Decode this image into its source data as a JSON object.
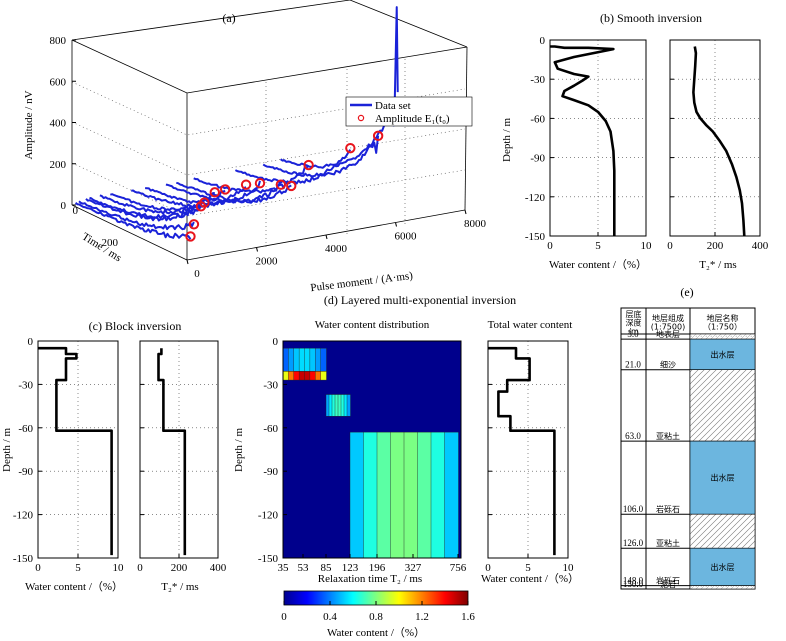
{
  "colors": {
    "data_line": "#1a22d8",
    "marker": "#e8141c",
    "aquifer": "#6cb6df",
    "profile": "#000000"
  },
  "chart_data": [
    {
      "id": "a",
      "type": "line3d",
      "title": "(a)",
      "zlabel": "Amplitude / nV",
      "xlabel": "Time / ms",
      "ylabel": "Pulse moment / (A·ms)",
      "zticks": [
        "0",
        "200",
        "400",
        "600",
        "800"
      ],
      "xticks": [
        "0",
        "200"
      ],
      "yticks": [
        "0",
        "2000",
        "4000",
        "6000",
        "8000"
      ],
      "zlim": [
        0,
        800
      ],
      "xlim": [
        0,
        300
      ],
      "ylim": [
        0,
        8000
      ],
      "legend": {
        "position": "right",
        "entries": [
          "Data set",
          "Amplitude E₁(t₀)"
        ]
      },
      "series": [
        {
          "q": 100,
          "e0": 110
        },
        {
          "q": 200,
          "e0": 165
        },
        {
          "q": 400,
          "e0": 245
        },
        {
          "q": 500,
          "e0": 260
        },
        {
          "q": 800,
          "e0": 300
        },
        {
          "q": 1100,
          "e0": 305
        },
        {
          "q": 1700,
          "e0": 310
        },
        {
          "q": 2100,
          "e0": 305
        },
        {
          "q": 2700,
          "e0": 280
        },
        {
          "q": 3000,
          "e0": 265
        },
        {
          "q": 3500,
          "e0": 350
        },
        {
          "q": 4700,
          "e0": 395
        },
        {
          "q": 5500,
          "e0": 430
        },
        {
          "q": 6000,
          "e0": 575
        }
      ]
    },
    {
      "id": "b",
      "type": "line",
      "title": "(b) Smooth inversion",
      "panels": [
        {
          "xlabel": "Water content /（%）",
          "ylabel": "Depth / m",
          "xlim": [
            0,
            10
          ],
          "ylim": [
            0,
            -150
          ],
          "xticks": [
            "0",
            "5",
            "10"
          ],
          "yticks": [
            "0",
            "-30",
            "-60",
            "-90",
            "-120",
            "-150"
          ],
          "x": [
            0,
            0.5,
            1.5,
            4,
            6.6,
            2.5,
            0.5,
            0.8,
            2.5,
            4,
            3.4,
            2.5,
            1.5,
            1.3,
            2.5,
            4,
            5,
            5.8,
            6.3,
            6.6,
            6.7,
            6.7,
            6.7
          ],
          "y": [
            -5,
            -5,
            -6,
            -6,
            -7,
            -13,
            -17,
            -22,
            -26,
            -28,
            -31,
            -35,
            -39,
            -43,
            -46,
            -50,
            -55,
            -62,
            -70,
            -85,
            -100,
            -130,
            -150
          ]
        },
        {
          "xlabel": "T₂* / ms",
          "xlim": [
            0,
            400
          ],
          "ylim": [
            0,
            -150
          ],
          "xticks": [
            "0",
            "200",
            "400"
          ],
          "x": [
            110,
            115,
            112,
            108,
            104,
            108,
            118,
            135,
            160,
            190,
            220,
            250,
            275,
            295,
            310,
            320,
            326,
            330
          ],
          "y": [
            -5,
            -10,
            -20,
            -30,
            -40,
            -48,
            -55,
            -60,
            -65,
            -70,
            -77,
            -85,
            -95,
            -105,
            -115,
            -125,
            -138,
            -150
          ]
        }
      ]
    },
    {
      "id": "c",
      "type": "line",
      "title": "(c) Block inversion",
      "panels": [
        {
          "xlabel": "Water content /（%）",
          "ylabel": "Depth / m",
          "xlim": [
            0,
            10
          ],
          "ylim": [
            0,
            -150
          ],
          "xticks": [
            "0",
            "5",
            "10"
          ],
          "yticks": [
            "0",
            "-30",
            "-60",
            "-90",
            "-120",
            "-150"
          ],
          "x": [
            0,
            3.5,
            3.5,
            4.8,
            4.8,
            3.5,
            3.5,
            2.3,
            2.3,
            9.2,
            9.2
          ],
          "y": [
            -5,
            -5,
            -9,
            -9,
            -12,
            -12,
            -27,
            -27,
            -62,
            -62,
            -148
          ]
        },
        {
          "xlabel": "T₂* / ms",
          "xlim": [
            0,
            400
          ],
          "ylim": [
            0,
            -150
          ],
          "xticks": [
            "0",
            "200",
            "400"
          ],
          "x": [
            110,
            110,
            95,
            95,
            120,
            120,
            230,
            230
          ],
          "y": [
            -5,
            -9,
            -9,
            -27,
            -27,
            -62,
            -62,
            -148
          ]
        }
      ]
    },
    {
      "id": "d",
      "type": "heatmap",
      "title": "(d) Layered multi-exponential inversion",
      "subtitle_left": "Water content distribution",
      "subtitle_right": "Total water content",
      "xlabel": "Relaxation time T₂ / ms",
      "ylabel": "Depth / m",
      "xticks": [
        "35",
        "53",
        "85",
        "123",
        "196",
        "327",
        "756"
      ],
      "yticks": [
        "0",
        "-30",
        "-60",
        "-90",
        "-120",
        "-150"
      ],
      "colorbar": {
        "label": "Water content /（%）",
        "ticks": [
          "0",
          "0.4",
          "0.8",
          "1.2",
          "1.6"
        ],
        "lim": [
          0,
          1.6
        ]
      },
      "blocks": [
        {
          "t2_from": 35,
          "t2_to": 85,
          "depth_from": -5,
          "depth_to": -21,
          "value": 0.55
        },
        {
          "t2_from": 35,
          "t2_to": 85,
          "depth_from": -21,
          "depth_to": -27,
          "value": 1.5
        },
        {
          "t2_from": 85,
          "t2_to": 123,
          "depth_from": -37,
          "depth_to": -52,
          "value": 0.7
        },
        {
          "t2_from": 123,
          "t2_to": 756,
          "depth_from": -63,
          "depth_to": -150,
          "value": 0.8
        }
      ],
      "total": {
        "xlim": [
          0,
          10
        ],
        "xticks": [
          "0",
          "5",
          "10"
        ],
        "xlabel": "Water content /（%）",
        "x": [
          0,
          3.5,
          3.5,
          5.2,
          5.2,
          2.4,
          2.4,
          1.3,
          1.3,
          2.8,
          2.8,
          8.3,
          8.3
        ],
        "y": [
          -5,
          -5,
          -12,
          -12,
          -27,
          -27,
          -35,
          -35,
          -52,
          -52,
          -62,
          -62,
          -148
        ]
      }
    },
    {
      "id": "e",
      "type": "table",
      "title": "(e)",
      "headers": [
        "层底\n深度\n/m",
        "地层组成\n(1:7500)",
        "地层名称\n（1:750）"
      ],
      "rows": [
        {
          "depth": "3.0",
          "name": "地表层",
          "aquifer": false
        },
        {
          "depth": "21.0",
          "name": "细沙",
          "aquifer": true,
          "label": "出水层"
        },
        {
          "depth": "63.0",
          "name": "亚粘土",
          "aquifer": false
        },
        {
          "depth": "106.0",
          "name": "岩砾石",
          "aquifer": true,
          "label": "出水层"
        },
        {
          "depth": "126.0",
          "name": "亚粘土",
          "aquifer": false
        },
        {
          "depth": "148.0",
          "name": "岩砾石",
          "aquifer": true,
          "label": "出水层"
        },
        {
          "depth": "150.0",
          "name": "泥岩",
          "aquifer": false
        }
      ]
    }
  ]
}
